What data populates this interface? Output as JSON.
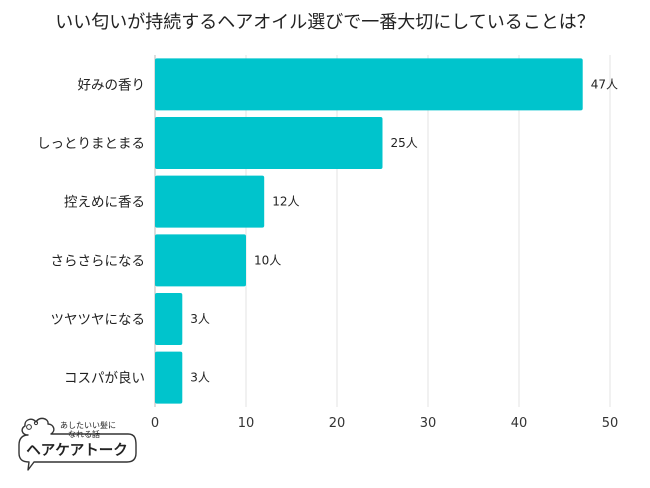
{
  "chart_data": {
    "type": "bar",
    "orientation": "horizontal",
    "title": "いい匂いが持続するヘアオイル選びで一番大切にしていることは？",
    "categories": [
      "好みの香り",
      "しっとりまとまる",
      "控えめに香る",
      "さらさらになる",
      "ツヤツヤになる",
      "コスパが良い"
    ],
    "values": [
      47,
      25,
      12,
      10,
      3,
      3
    ],
    "value_labels": [
      "47人",
      "25人",
      "12人",
      "10人",
      "3人",
      "3人"
    ],
    "xlim": [
      0,
      50
    ],
    "xticks": [
      "0",
      "10",
      "20",
      "30",
      "40",
      "50"
    ],
    "grid": "vertical",
    "bar_color": "#00C4CC"
  },
  "logo": {
    "tagline_1": "あしたいい髪に",
    "tagline_2": "なれる話",
    "name": "ヘアケアトーク"
  }
}
